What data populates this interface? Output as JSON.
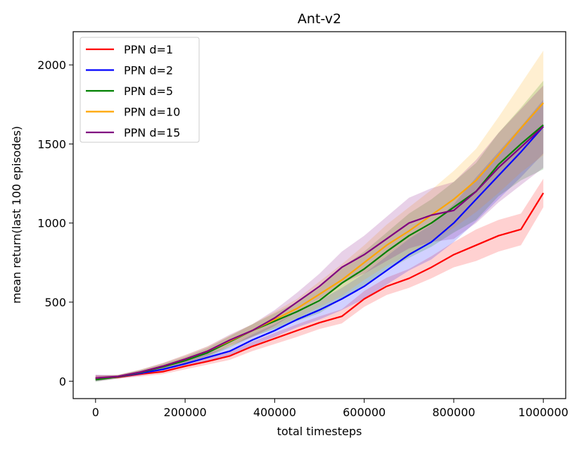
{
  "chart_data": {
    "type": "line",
    "title": "Ant-v2",
    "xlabel": "total timesteps",
    "ylabel": "mean return(last 100 episodes)",
    "xlim": [
      -50000,
      1050000
    ],
    "ylim": [
      -110,
      2210
    ],
    "xticks": [
      0,
      200000,
      400000,
      600000,
      800000,
      1000000
    ],
    "xtick_labels": [
      "0",
      "200000",
      "400000",
      "600000",
      "800000",
      "1000000"
    ],
    "yticks": [
      0,
      500,
      1000,
      1500,
      2000
    ],
    "ytick_labels": [
      "0",
      "500",
      "1000",
      "1500",
      "2000"
    ],
    "grid": false,
    "legend_position": "top-left",
    "x": [
      0,
      50000,
      100000,
      150000,
      200000,
      250000,
      300000,
      350000,
      400000,
      450000,
      500000,
      550000,
      600000,
      650000,
      700000,
      750000,
      800000,
      850000,
      900000,
      950000,
      1000000
    ],
    "series": [
      {
        "name": "PPN d=1",
        "color": "#ff0000",
        "values": [
          20,
          25,
          45,
          60,
          95,
          125,
          160,
          220,
          270,
          320,
          370,
          410,
          520,
          600,
          650,
          720,
          800,
          860,
          920,
          960,
          1190
        ],
        "band": [
          20,
          10,
          15,
          15,
          20,
          20,
          25,
          30,
          35,
          40,
          40,
          45,
          50,
          55,
          60,
          70,
          80,
          100,
          100,
          100,
          90
        ]
      },
      {
        "name": "PPN d=2",
        "color": "#0000ff",
        "values": [
          20,
          28,
          50,
          75,
          110,
          150,
          190,
          260,
          320,
          390,
          450,
          520,
          600,
          700,
          800,
          880,
          1000,
          1150,
          1300,
          1450,
          1610
        ],
        "band": [
          20,
          10,
          15,
          15,
          20,
          25,
          30,
          35,
          40,
          50,
          60,
          70,
          80,
          90,
          100,
          110,
          120,
          140,
          150,
          160,
          170
        ]
      },
      {
        "name": "PPN d=5",
        "color": "#008000",
        "values": [
          10,
          28,
          55,
          90,
          130,
          180,
          250,
          320,
          380,
          440,
          510,
          620,
          710,
          820,
          920,
          1000,
          1100,
          1200,
          1370,
          1500,
          1620
        ],
        "band": [
          15,
          10,
          15,
          20,
          25,
          30,
          35,
          40,
          50,
          60,
          80,
          100,
          110,
          120,
          140,
          150,
          160,
          180,
          200,
          230,
          280
        ]
      },
      {
        "name": "PPN d=10",
        "color": "#ffa500",
        "values": [
          20,
          30,
          58,
          95,
          140,
          190,
          255,
          320,
          390,
          460,
          550,
          640,
          750,
          860,
          950,
          1050,
          1150,
          1270,
          1430,
          1600,
          1760
        ],
        "band": [
          15,
          10,
          15,
          20,
          25,
          30,
          35,
          40,
          50,
          60,
          80,
          100,
          110,
          130,
          150,
          160,
          180,
          200,
          240,
          280,
          330
        ]
      },
      {
        "name": "PPN d=15",
        "color": "#800080",
        "values": [
          20,
          30,
          58,
          95,
          140,
          190,
          260,
          320,
          400,
          500,
          600,
          720,
          800,
          900,
          1000,
          1050,
          1080,
          1200,
          1350,
          1480,
          1610
        ],
        "band": [
          15,
          10,
          15,
          20,
          25,
          30,
          35,
          40,
          50,
          60,
          80,
          100,
          120,
          140,
          160,
          170,
          180,
          200,
          220,
          240,
          260
        ]
      }
    ]
  }
}
